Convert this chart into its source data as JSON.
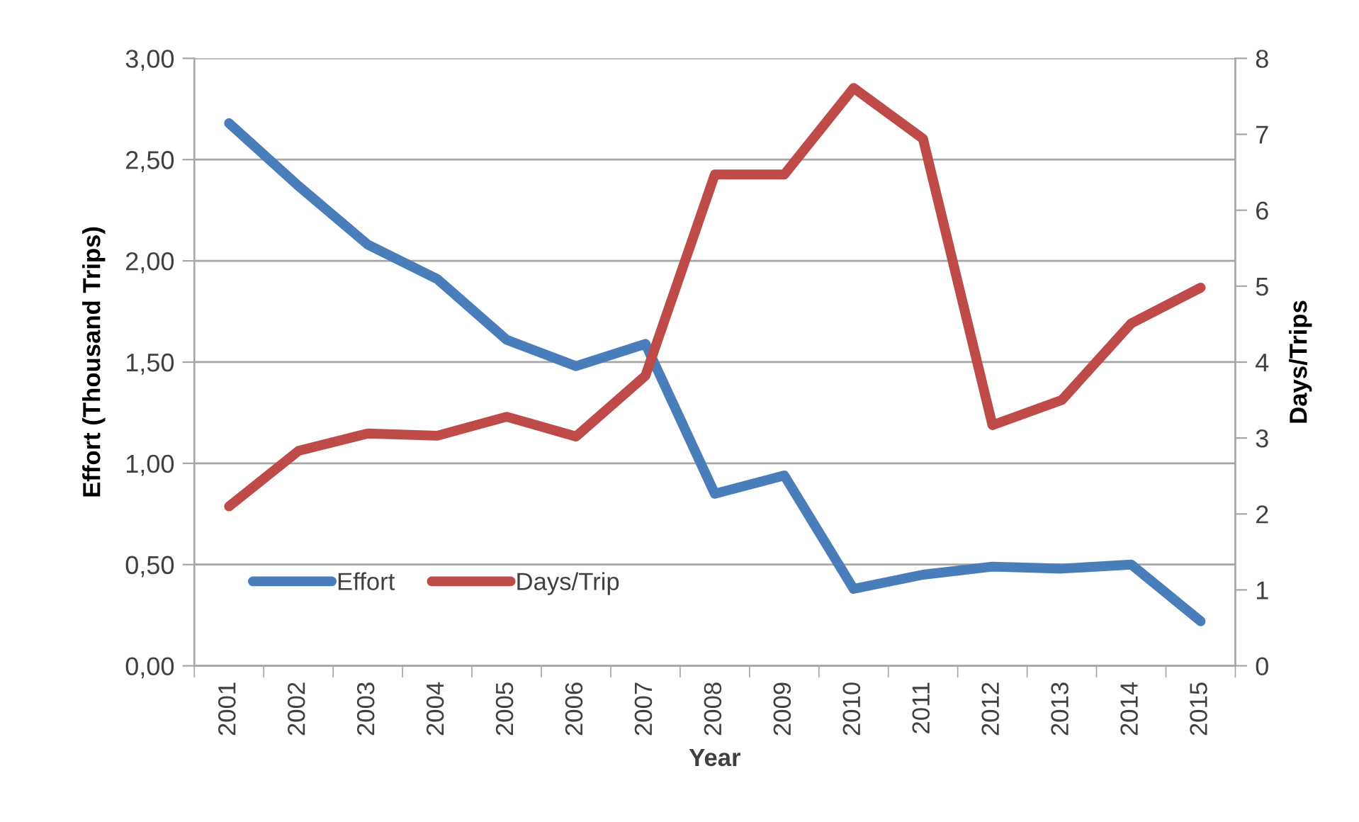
{
  "chart_data": {
    "type": "line",
    "xlabel": "Year",
    "ylabel": "Effort (Thousand Trips)",
    "y2label": "Days/Trips",
    "categories": [
      "2001",
      "2002",
      "2003",
      "2004",
      "2005",
      "2006",
      "2007",
      "2008",
      "2009",
      "2010",
      "2011",
      "2012",
      "2013",
      "2014",
      "2015"
    ],
    "series": [
      {
        "name": "Effort",
        "color": "#4a7ebb",
        "values": [
          2.68,
          2.37,
          2.08,
          1.91,
          1.61,
          1.48,
          1.59,
          0.85,
          0.94,
          0.38,
          0.45,
          0.49,
          0.48,
          0.5,
          0.22
        ]
      },
      {
        "name": "Days/Trip",
        "color": "#be4b48",
        "axis": "y2",
        "values": [
          2.1,
          2.83,
          3.06,
          3.03,
          3.28,
          3.02,
          3.82,
          6.47,
          6.47,
          7.61,
          6.94,
          3.17,
          3.5,
          4.51,
          4.98
        ]
      }
    ],
    "ylim": [
      0,
      3
    ],
    "yticks": [
      {
        "value": 0,
        "label": "0,00"
      },
      {
        "value": 0.5,
        "label": "0,50"
      },
      {
        "value": 1,
        "label": "1,00"
      },
      {
        "value": 1.5,
        "label": "1,50"
      },
      {
        "value": 2,
        "label": "2,00"
      },
      {
        "value": 2.5,
        "label": "2,50"
      },
      {
        "value": 3,
        "label": "3,00"
      }
    ],
    "y2lim": [
      0,
      8
    ],
    "y2ticks": [
      0,
      1,
      2,
      3,
      4,
      5,
      6,
      7,
      8
    ],
    "grid": "y",
    "legend": "bottom left",
    "marker": "none",
    "line_style": "solid"
  }
}
